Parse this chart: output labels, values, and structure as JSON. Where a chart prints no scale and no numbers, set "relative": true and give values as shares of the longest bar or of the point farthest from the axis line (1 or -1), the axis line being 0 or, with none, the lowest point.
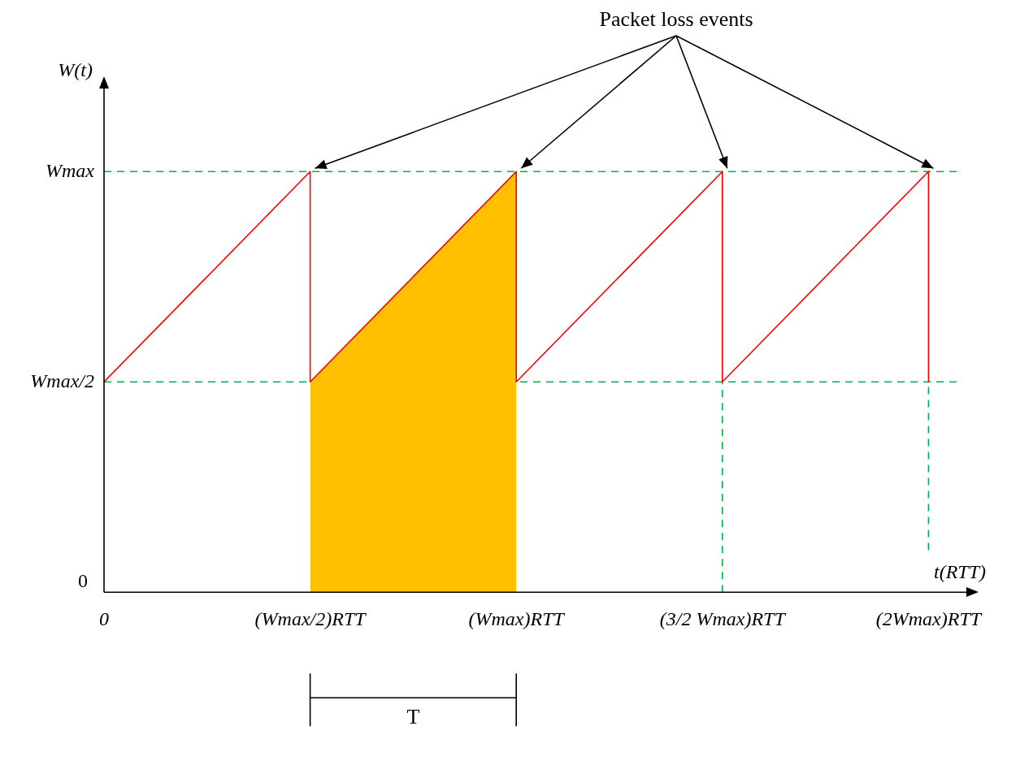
{
  "chart_data": {
    "type": "line",
    "relative": true,
    "xlabel": "t(RTT)",
    "ylabel": "W(t)",
    "categories": [
      "0",
      "(Wmax/2)RTT",
      "(Wmax)RTT",
      "(3/2 Wmax)RTT",
      "(2Wmax)RTT"
    ],
    "grid": false,
    "legend": false,
    "series": [
      {
        "type": "line",
        "color": "#ff0000",
        "x": [
          "0",
          "(Wmax/2)RTT",
          "(Wmax/2)RTT",
          "(Wmax)RTT",
          "(Wmax)RTT",
          "(3/2 Wmax)RTT",
          "(3/2 Wmax)RTT",
          "(2Wmax)RTT",
          "(2Wmax)RTT"
        ],
        "values": [
          0.5,
          1,
          0.5,
          1,
          0.5,
          1,
          0.5,
          1,
          0.5
        ]
      },
      {
        "type": "area",
        "color": "#ffc000",
        "x": [
          "(Wmax/2)RTT",
          "(Wmax)RTT"
        ],
        "values": [
          0.5,
          1
        ]
      },
      {
        "type": "line",
        "color": "#00b050",
        "line_style": "dashed",
        "x": [
          "(3/2 Wmax)RTT",
          "(3/2 Wmax)RTT"
        ],
        "values": [
          0,
          0.5
        ]
      },
      {
        "type": "line",
        "color": "#00b050",
        "line_style": "dashed",
        "x": [
          "(2Wmax)RTT",
          "(2Wmax)RTT"
        ],
        "values": [
          0.1,
          0.5
        ]
      }
    ],
    "ref_lines": [
      {
        "axis": "y",
        "value": 0.5,
        "label": "Wmax/2",
        "color": "#00b050",
        "line_style": "dashed"
      },
      {
        "axis": "y",
        "value": 1,
        "label": "Wmax",
        "color": "#00b050",
        "line_style": "dashed"
      }
    ],
    "annotations": [
      "Packet loss events",
      "T",
      "0"
    ]
  }
}
